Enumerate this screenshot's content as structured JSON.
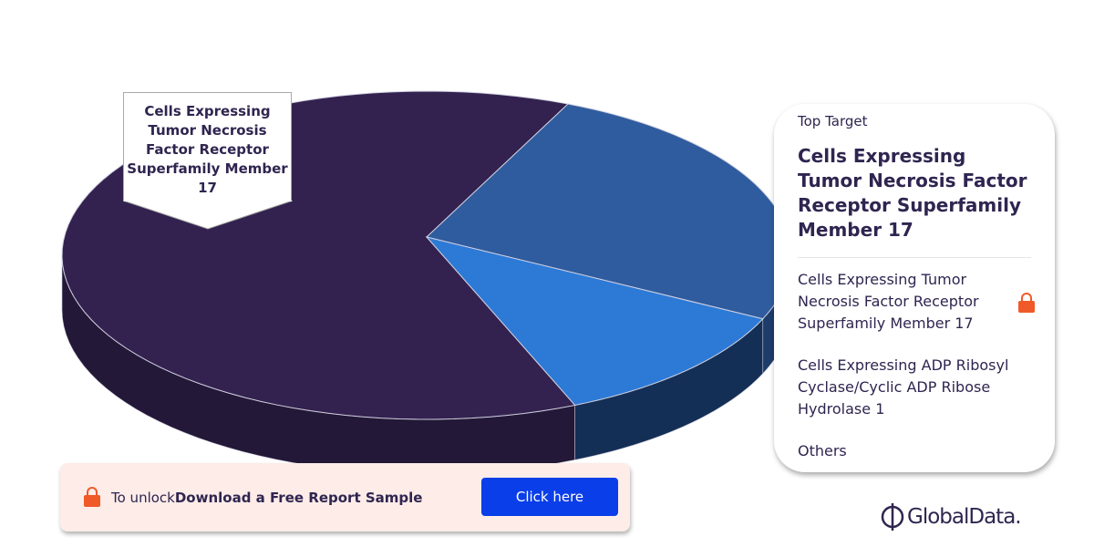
{
  "chart_data": {
    "type": "pie",
    "style": "3d",
    "slices": [
      {
        "label": "Cells Expressing Tumor Necrosis Factor Receptor Superfamily Member 17",
        "value": 63,
        "color": "#33224f",
        "side_color": "#241838"
      },
      {
        "label": "Cells Expressing ADP Ribosyl Cyclase/Cyclic ADP Ribose Hydrolase 1",
        "value": 25,
        "color": "#2f5c9e",
        "side_color": "#1d3c6a"
      },
      {
        "label": "Others",
        "value": 12,
        "color": "#2d7ad6",
        "side_color": "#142f55"
      }
    ],
    "callout": "Cells Expressing Tumor Necrosis Factor Receptor Superfamily Member 17"
  },
  "card": {
    "label": "Top Target",
    "top": "Cells Expressing Tumor Necrosis Factor Receptor Superfamily Member 17",
    "items": [
      "Cells Expressing Tumor Necrosis Factor Receptor Superfamily Member 17",
      "Cells Expressing ADP Ribosyl Cyclase/Cyclic ADP Ribose Hydrolase 1",
      "Others"
    ]
  },
  "banner": {
    "prefix": "To unlock",
    "bold": "Download a Free Report Sample",
    "button": "Click here"
  },
  "logo": "GlobalData."
}
